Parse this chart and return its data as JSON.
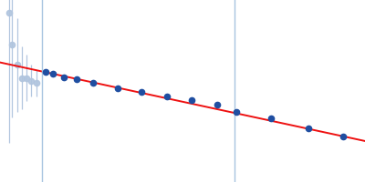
{
  "background_color": "#ffffff",
  "vline1_x": 0.048,
  "vline2_x": 0.27,
  "vline_color": "#a8c4e0",
  "vline_lw": 1.0,
  "fit_line_color": "#ee1111",
  "fit_line_lw": 1.4,
  "fit_x_start": 0.0,
  "fit_x_end": 0.42,
  "fit_slope": -0.72,
  "fit_intercept": 0.56,
  "excluded_points": {
    "x": [
      0.01,
      0.014,
      0.02,
      0.025,
      0.03,
      0.036,
      0.042
    ],
    "y": [
      0.75,
      0.63,
      0.55,
      0.5,
      0.5,
      0.49,
      0.48
    ],
    "yerr": [
      0.5,
      0.28,
      0.18,
      0.12,
      0.09,
      0.06,
      0.05
    ],
    "color": "#b0c4de",
    "ecolor": "#aac0dc",
    "marker_size": 4.5
  },
  "included_points": {
    "x": [
      0.053,
      0.061,
      0.074,
      0.088,
      0.107,
      0.135,
      0.163,
      0.192,
      0.22,
      0.25,
      0.272,
      0.312,
      0.355,
      0.395
    ],
    "y": [
      0.522,
      0.516,
      0.502,
      0.494,
      0.48,
      0.462,
      0.445,
      0.428,
      0.414,
      0.398,
      0.37,
      0.344,
      0.307,
      0.276
    ],
    "yerr": [
      0.008,
      0.007,
      0.006,
      0.005,
      0.005,
      0.004,
      0.004,
      0.003,
      0.003,
      0.003,
      0.003,
      0.003,
      0.003,
      0.003
    ],
    "color": "#1f4ea1",
    "ecolor": "#4466bb",
    "marker_size": 4.5
  },
  "xlim": [
    0.0,
    0.42
  ],
  "ylim": [
    0.1,
    0.8
  ]
}
